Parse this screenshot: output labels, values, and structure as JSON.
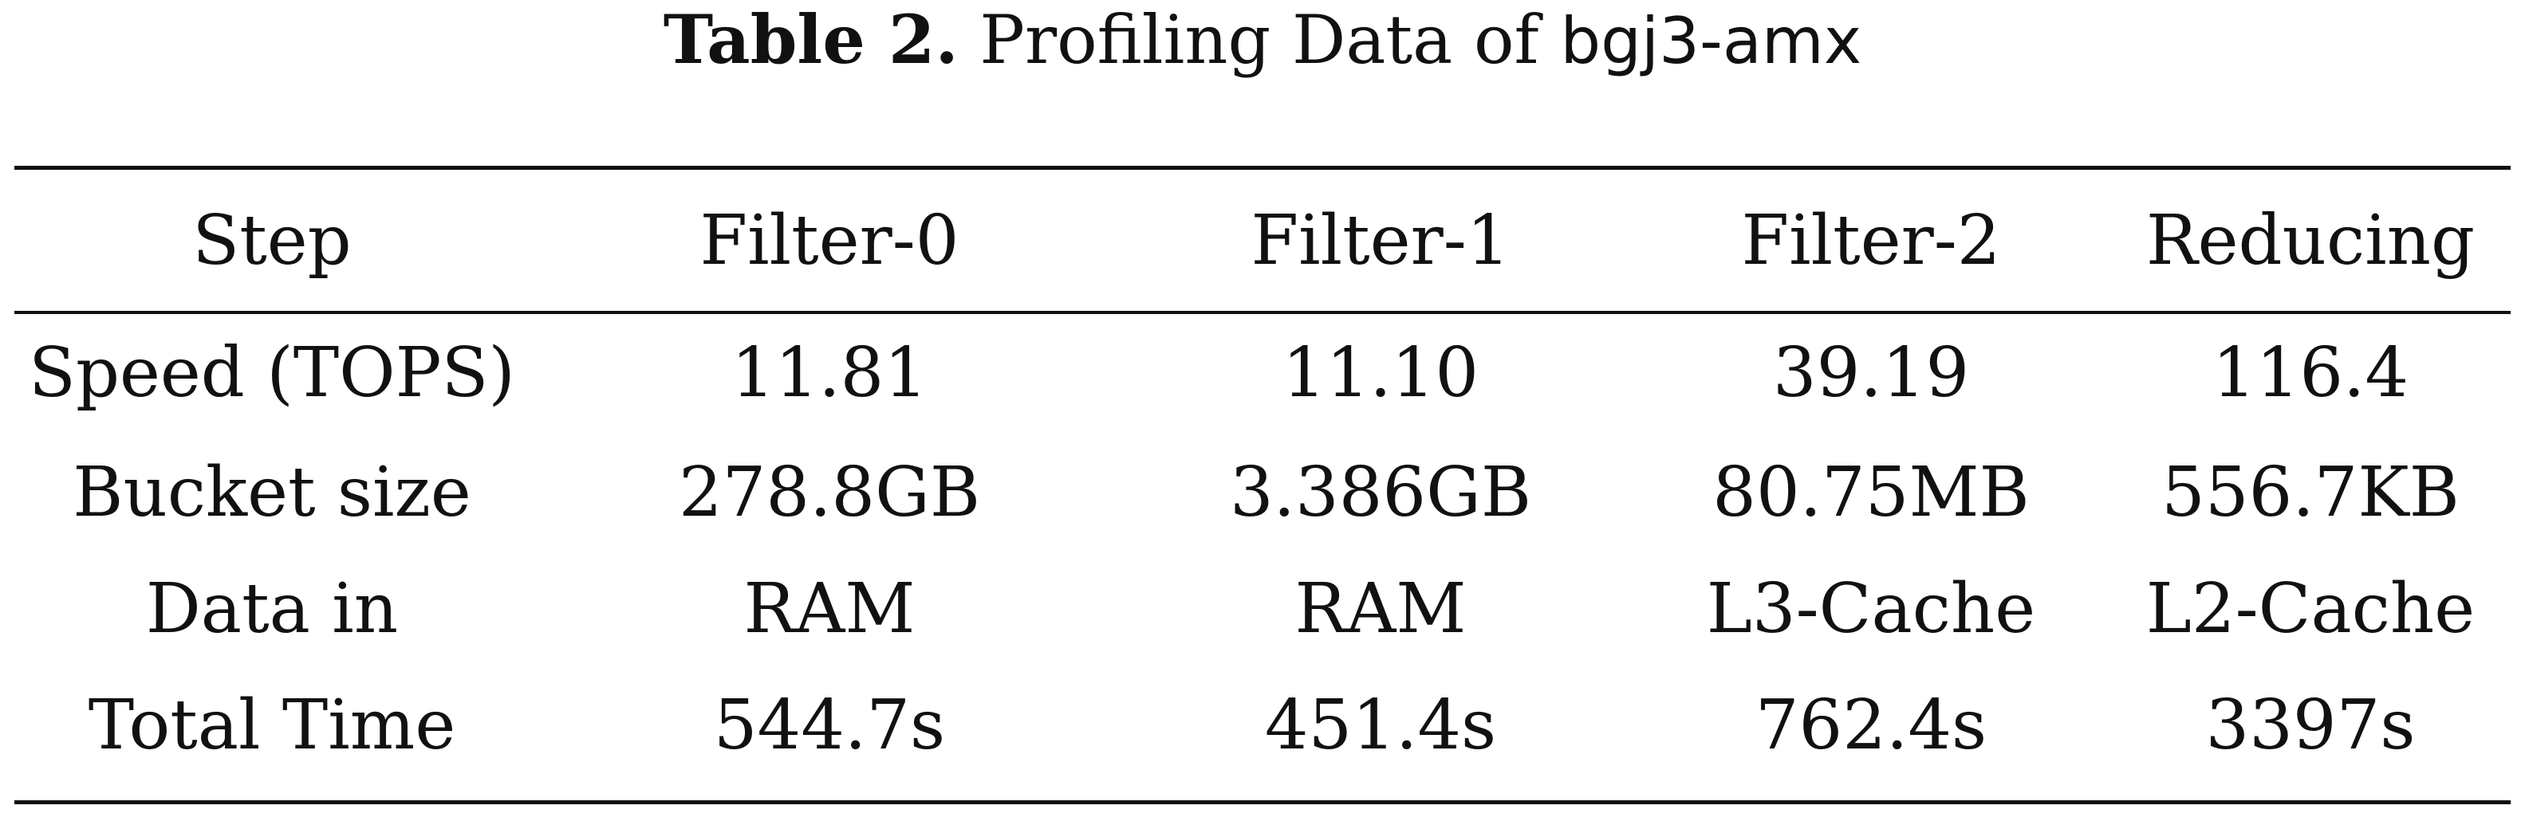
{
  "caption": {
    "label": "Table 2.",
    "text": "Profiling Data of",
    "system": "bgj3-amx"
  },
  "table": {
    "headers": [
      "Step",
      "Filter-0",
      "Filter-1",
      "Filter-2",
      "Reducing"
    ],
    "rows": [
      [
        "Speed (TOPS)",
        "11.81",
        "11.10",
        "39.19",
        "116.4"
      ],
      [
        "Bucket size",
        "278.8GB",
        "3.386GB",
        "80.75MB",
        "556.7KB"
      ],
      [
        "Data in",
        "RAM",
        "RAM",
        "L3-Cache",
        "L2-Cache"
      ],
      [
        "Total Time",
        "544.7s",
        "451.4s",
        "762.4s",
        "3397s"
      ]
    ]
  }
}
